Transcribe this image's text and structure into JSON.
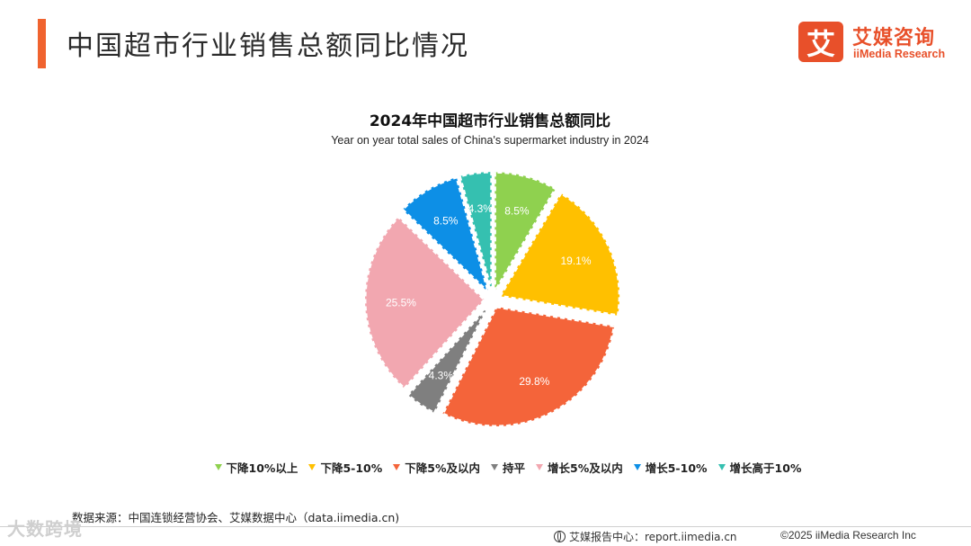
{
  "header": {
    "title": "中国超市行业销售总额同比情况",
    "accent_color": "#f0632f"
  },
  "logo": {
    "mark": "艾",
    "name_cn": "艾媒咨询",
    "name_en": "iiMedia Research",
    "color": "#e8502a"
  },
  "chart_data": {
    "type": "pie",
    "title": "2024年中国超市行业销售总额同比",
    "subtitle": "Year on year total sales of China's supermarket industry in 2024",
    "start_angle_deg": 0,
    "direction": "clockwise",
    "slices": [
      {
        "name": "下降10%以上",
        "value": 8.5,
        "label": "8.5%",
        "color": "#8fd14f"
      },
      {
        "name": "下降5-10%",
        "value": 19.1,
        "label": "19.1%",
        "color": "#ffc000"
      },
      {
        "name": "下降5%及以内",
        "value": 29.8,
        "label": "29.8%",
        "color": "#f4643a"
      },
      {
        "name": "持平",
        "value": 4.3,
        "label": "4.3%",
        "color": "#7f7f7f"
      },
      {
        "name": "增长5%及以内",
        "value": 25.5,
        "label": "25.5%",
        "color": "#f2a7b0"
      },
      {
        "name": "增长5-10%",
        "value": 8.5,
        "label": "8.5%",
        "color": "#0d8fe6"
      },
      {
        "name": "增长高于10%",
        "value": 4.3,
        "label": "4.3%",
        "color": "#35c0b0"
      }
    ],
    "legend_position": "bottom"
  },
  "footer": {
    "source": "数据来源：中国连锁经营协会、艾媒数据中心（data.iimedia.cn)",
    "report": "艾媒报告中心：report.iimedia.cn",
    "copyright": "©2025  iiMedia Research  Inc",
    "watermark": "大数跨境"
  }
}
